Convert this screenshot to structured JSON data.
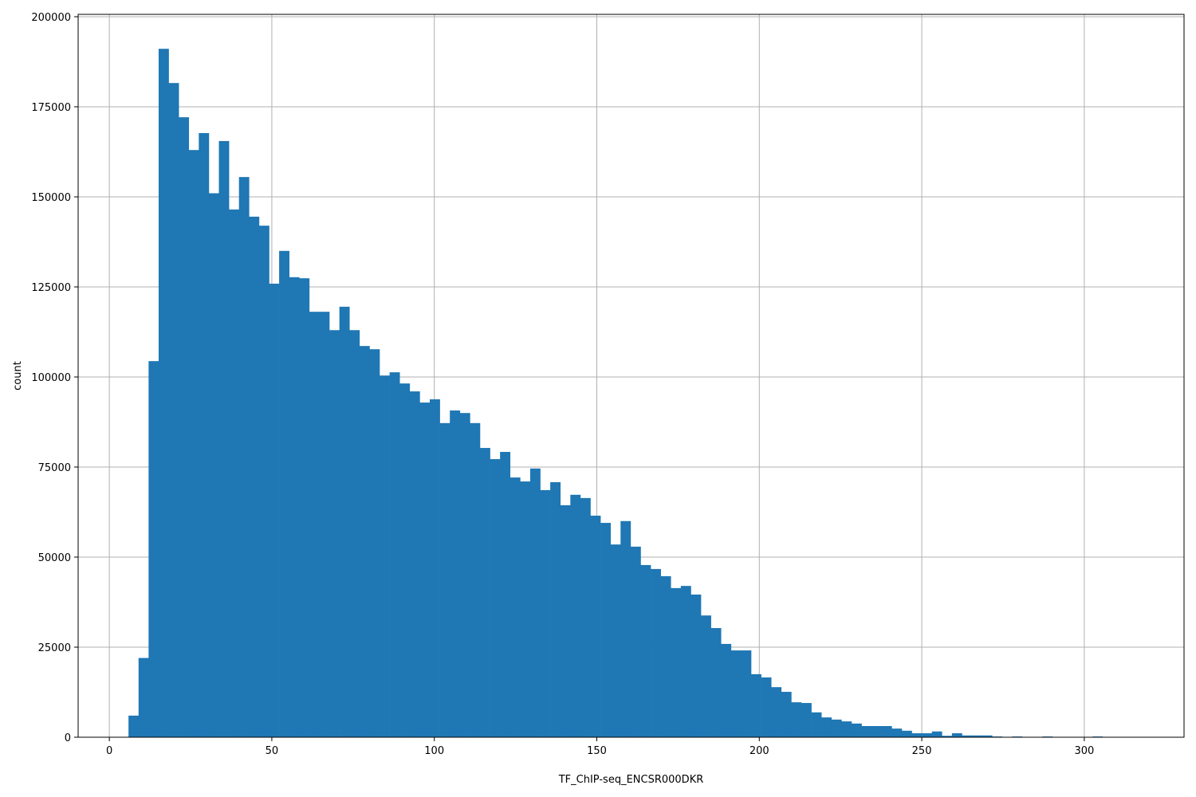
{
  "chart_data": {
    "type": "bar",
    "subtype": "histogram",
    "title": "",
    "xlabel": "TF_ChIP-seq_ENCSR000DKR",
    "ylabel": "count",
    "xlim": [
      -9.6,
      330.7
    ],
    "ylim": [
      0,
      200000
    ],
    "grid": true,
    "legend": null,
    "bar_color": "#1f77b4",
    "bin_start": 5.9,
    "bin_width": 3.09,
    "x_ticks": [
      0,
      50,
      100,
      150,
      200,
      250,
      300
    ],
    "x_tick_labels": [
      "0",
      "50",
      "100",
      "150",
      "200",
      "250",
      "300"
    ],
    "y_ticks": [
      0,
      25000,
      50000,
      75000,
      100000,
      125000,
      150000,
      175000,
      200000
    ],
    "y_tick_labels": [
      "0",
      "25000",
      "50000",
      "75000",
      "100000",
      "125000",
      "150000",
      "175000",
      "200000"
    ],
    "values": [
      6000,
      22000,
      104400,
      191100,
      181600,
      172100,
      163000,
      167700,
      151000,
      165500,
      146500,
      155500,
      144500,
      142000,
      125900,
      135000,
      127700,
      127400,
      118100,
      118100,
      113000,
      119500,
      113000,
      108600,
      107700,
      100400,
      101300,
      98200,
      96000,
      92900,
      93800,
      87200,
      90700,
      90000,
      87200,
      80300,
      77200,
      79200,
      72100,
      71000,
      74600,
      68600,
      70800,
      64400,
      67300,
      66400,
      61500,
      59500,
      53500,
      60000,
      52900,
      47800,
      46700,
      44700,
      41400,
      42000,
      39600,
      33800,
      30300,
      25900,
      24100,
      24100,
      17500,
      16600,
      13900,
      12600,
      9700,
      9500,
      6900,
      5500,
      4900,
      4400,
      3800,
      3100,
      3100,
      3100,
      2400,
      1800,
      1100,
      1100,
      1600,
      400,
      1100,
      500,
      500,
      500,
      200,
      0,
      200,
      0,
      0,
      200,
      0,
      0,
      0,
      0,
      200,
      0,
      0,
      0
    ]
  }
}
